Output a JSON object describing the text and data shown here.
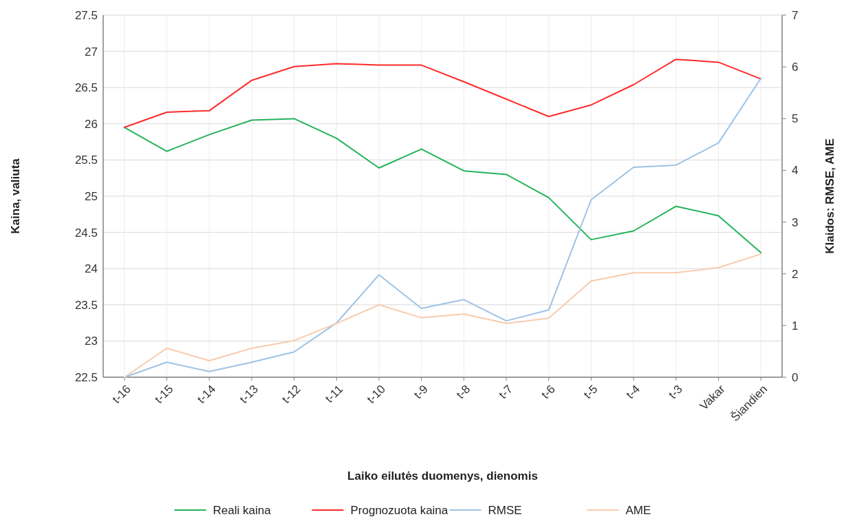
{
  "chart_data": {
    "type": "line",
    "xlabel": "Laiko eilutės duomenys, dienomis",
    "ylabel": "Kaina, valiuta",
    "y2label": "Klaidos: RMSE, AME",
    "categories": [
      "t-16",
      "t-15",
      "t-14",
      "t-13",
      "t-12",
      "t-11",
      "t-10",
      "t-9",
      "t-8",
      "t-7",
      "t-6",
      "t-5",
      "t-4",
      "t-3",
      "Vakar",
      "Šiandien"
    ],
    "series": [
      {
        "name": "Reali kaina",
        "color": "#22b35b",
        "values": [
          25.95,
          25.62,
          25.85,
          26.05,
          26.07,
          25.8,
          25.39,
          25.65,
          25.35,
          25.3,
          24.98,
          24.4,
          24.52,
          24.86,
          24.73,
          24.22
        ]
      },
      {
        "name": "Prognozuota kaina",
        "color": "#ff2a2a",
        "values": [
          25.95,
          26.16,
          26.18,
          26.6,
          26.79,
          26.83,
          26.81,
          26.81,
          26.58,
          26.34,
          26.1,
          26.26,
          26.54,
          26.89,
          26.85,
          26.62
        ]
      },
      {
        "name": "RMSE",
        "color": "#9dc3e6",
        "axis": "y2",
        "values": [
          0,
          0.29,
          0.11,
          0.29,
          0.49,
          1.05,
          1.98,
          1.33,
          1.5,
          1.09,
          1.3,
          3.43,
          4.06,
          4.1,
          4.53,
          5.78
        ]
      },
      {
        "name": "AME",
        "color": "#f8cbad",
        "axis": "y2",
        "values": [
          0,
          0.56,
          0.32,
          0.56,
          0.71,
          1.04,
          1.4,
          1.15,
          1.22,
          1.04,
          1.14,
          1.86,
          2.02,
          2.02,
          2.12,
          2.38
        ]
      }
    ],
    "ylim": [
      22.5,
      27.5
    ],
    "yticks": [
      22.5,
      23,
      23.5,
      24,
      24.5,
      25,
      25.5,
      26,
      26.5,
      27,
      27.5
    ],
    "y2lim": [
      0,
      7
    ],
    "y2ticks": [
      0,
      1,
      2,
      3,
      4,
      5,
      6,
      7
    ],
    "grid": true,
    "legend": "bottom",
    "marker": "none",
    "line_style": "solid"
  }
}
